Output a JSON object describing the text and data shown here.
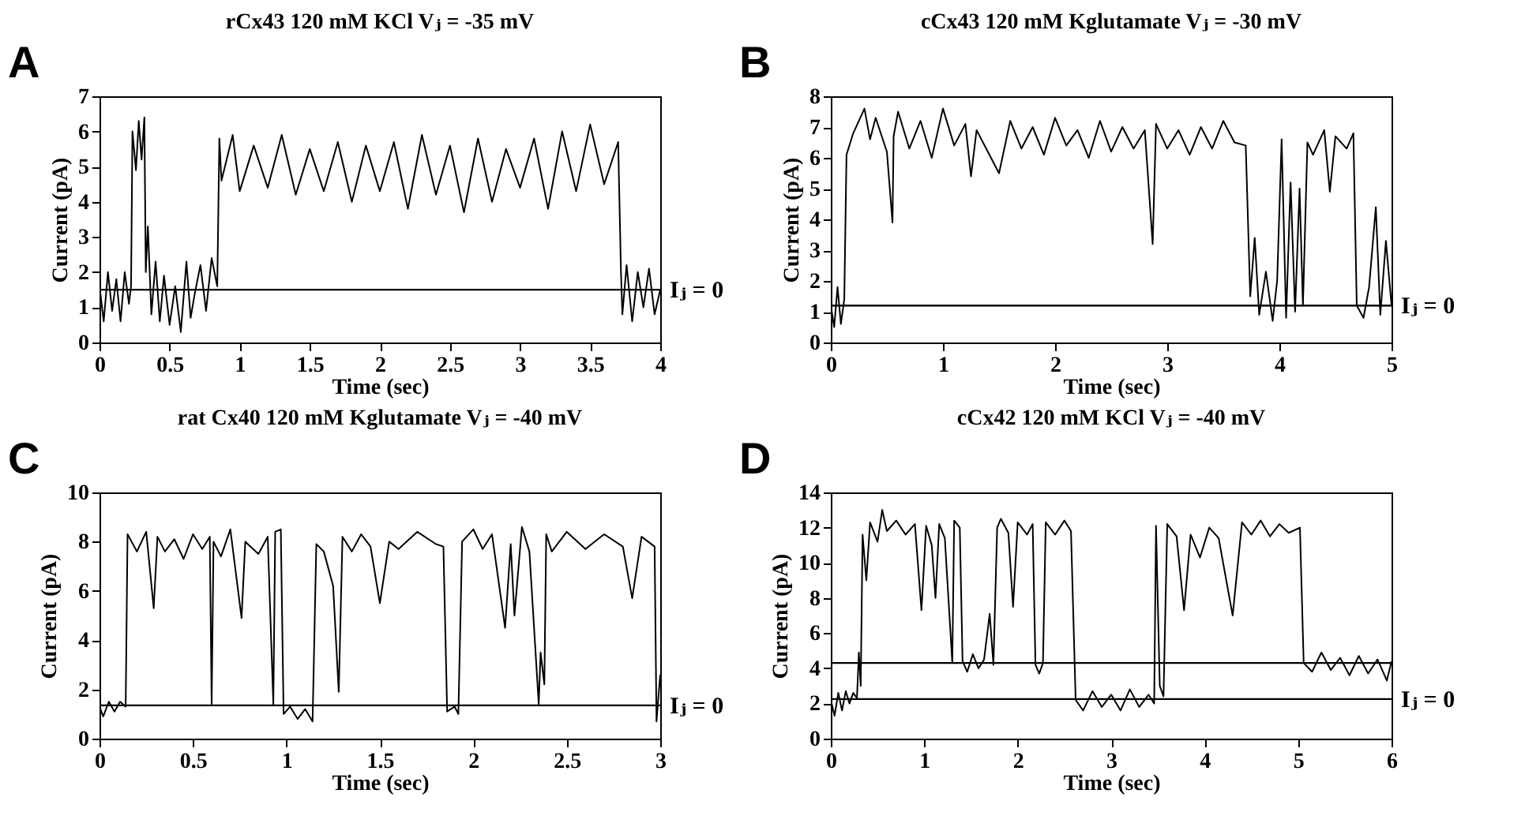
{
  "chart_data": [
    {
      "type": "line",
      "title": "rCx43  120 mM KCl  Vⱼ = -35 mV",
      "xlabel": "Time (sec)",
      "ylabel": "Current (pA)",
      "annotations": [
        "A",
        {
          "text": "Iⱼ = 0",
          "x": 4,
          "y": 1.5
        }
      ],
      "xlim": [
        0,
        4
      ],
      "xticks": [
        0,
        0.5,
        1,
        1.5,
        2,
        2.5,
        3,
        3.5,
        4
      ],
      "ylim": [
        0,
        7
      ],
      "yticks": [
        0,
        1,
        2,
        3,
        4,
        5,
        6,
        7
      ],
      "ref_lines": [
        {
          "axis": "y",
          "value": 1.5,
          "color": "#000000"
        }
      ],
      "series": [
        {
          "color": "#000000",
          "x": [
            0,
            0.03,
            0.06,
            0.09,
            0.12,
            0.15,
            0.18,
            0.21,
            0.225,
            0.235,
            0.26,
            0.28,
            0.3,
            0.32,
            0.33,
            0.345,
            0.37,
            0.4,
            0.43,
            0.46,
            0.5,
            0.54,
            0.58,
            0.62,
            0.65,
            0.68,
            0.72,
            0.76,
            0.8,
            0.84,
            0.855,
            0.87,
            0.95,
            1.0,
            1.1,
            1.2,
            1.3,
            1.4,
            1.5,
            1.6,
            1.7,
            1.8,
            1.9,
            2.0,
            2.1,
            2.2,
            2.3,
            2.4,
            2.5,
            2.6,
            2.7,
            2.8,
            2.9,
            3.0,
            3.1,
            3.2,
            3.3,
            3.4,
            3.5,
            3.6,
            3.7,
            3.72,
            3.73,
            3.76,
            3.8,
            3.84,
            3.88,
            3.92,
            3.96,
            4.0
          ],
          "values": [
            1.6,
            0.6,
            2.0,
            0.9,
            1.8,
            0.6,
            2.0,
            1.1,
            1.6,
            6.0,
            4.9,
            6.3,
            5.2,
            6.4,
            2.0,
            3.3,
            0.8,
            2.3,
            0.6,
            1.9,
            0.5,
            1.6,
            0.3,
            2.3,
            0.7,
            1.4,
            2.2,
            0.9,
            2.4,
            1.6,
            5.8,
            4.6,
            5.9,
            4.3,
            5.6,
            4.4,
            5.9,
            4.2,
            5.5,
            4.3,
            5.7,
            4.0,
            5.6,
            4.3,
            5.7,
            3.8,
            5.9,
            4.2,
            5.6,
            3.7,
            5.8,
            4.0,
            5.5,
            4.4,
            5.8,
            3.8,
            6.0,
            4.3,
            6.2,
            4.5,
            5.7,
            2.0,
            0.8,
            2.2,
            0.6,
            2.0,
            1.0,
            2.1,
            0.8,
            1.5
          ]
        }
      ]
    },
    {
      "type": "line",
      "title": "cCx43  120 mM Kglutamate  Vⱼ = -30 mV",
      "xlabel": "Time (sec)",
      "ylabel": "Current (pA)",
      "annotations": [
        "B",
        {
          "text": "Iⱼ = 0",
          "x": 5,
          "y": 1.2
        }
      ],
      "xlim": [
        0,
        5
      ],
      "xticks": [
        0,
        1,
        2,
        3,
        4,
        5
      ],
      "ylim": [
        0,
        8
      ],
      "yticks": [
        0,
        1,
        2,
        3,
        4,
        5,
        6,
        7,
        8
      ],
      "ref_lines": [
        {
          "axis": "y",
          "value": 1.2,
          "color": "#000000"
        }
      ],
      "series": [
        {
          "color": "#000000",
          "x": [
            0,
            0.03,
            0.06,
            0.09,
            0.12,
            0.14,
            0.2,
            0.3,
            0.35,
            0.4,
            0.5,
            0.55,
            0.56,
            0.6,
            0.7,
            0.8,
            0.9,
            1.0,
            1.1,
            1.2,
            1.25,
            1.3,
            1.4,
            1.5,
            1.6,
            1.7,
            1.8,
            1.9,
            2.0,
            2.1,
            2.2,
            2.3,
            2.4,
            2.5,
            2.6,
            2.7,
            2.8,
            2.87,
            2.9,
            3.0,
            3.1,
            3.2,
            3.3,
            3.4,
            3.5,
            3.6,
            3.7,
            3.74,
            3.78,
            3.82,
            3.88,
            3.94,
            3.98,
            4.02,
            4.06,
            4.1,
            4.14,
            4.18,
            4.21,
            4.25,
            4.3,
            4.4,
            4.45,
            4.5,
            4.6,
            4.66,
            4.69,
            4.75,
            4.8,
            4.86,
            4.9,
            4.95,
            5.0
          ],
          "values": [
            1.2,
            0.5,
            1.8,
            0.6,
            1.4,
            6.1,
            6.8,
            7.6,
            6.6,
            7.3,
            6.2,
            3.9,
            6.7,
            7.5,
            6.3,
            7.2,
            6.0,
            7.6,
            6.4,
            7.1,
            5.4,
            6.9,
            6.2,
            5.5,
            7.2,
            6.3,
            7.0,
            6.1,
            7.3,
            6.4,
            6.9,
            6.0,
            7.2,
            6.2,
            7.0,
            6.3,
            6.9,
            3.2,
            7.1,
            6.3,
            6.9,
            6.1,
            7.0,
            6.3,
            7.2,
            6.5,
            6.4,
            1.5,
            3.4,
            0.9,
            2.3,
            0.7,
            2.0,
            6.6,
            0.8,
            5.2,
            1.0,
            5.0,
            1.2,
            6.5,
            6.1,
            6.9,
            4.9,
            6.7,
            6.3,
            6.8,
            1.2,
            0.8,
            1.8,
            4.4,
            0.9,
            3.3,
            1.2
          ]
        }
      ]
    },
    {
      "type": "line",
      "title": "rat Cx40  120 mM Kglutamate  Vⱼ = -40 mV",
      "xlabel": "Time (sec)",
      "ylabel": "Current (pA)",
      "annotations": [
        "C",
        {
          "text": "Iⱼ = 0",
          "x": 3,
          "y": 1.35
        }
      ],
      "xlim": [
        0,
        3
      ],
      "xticks": [
        0,
        0.5,
        1,
        1.5,
        2,
        2.5,
        3
      ],
      "ylim": [
        0,
        10
      ],
      "yticks": [
        0,
        2,
        4,
        6,
        8,
        10
      ],
      "ref_lines": [
        {
          "axis": "y",
          "value": 1.35,
          "color": "#000000"
        }
      ],
      "series": [
        {
          "color": "#000000",
          "x": [
            0,
            0.02,
            0.05,
            0.08,
            0.11,
            0.14,
            0.15,
            0.2,
            0.25,
            0.29,
            0.31,
            0.35,
            0.4,
            0.45,
            0.5,
            0.55,
            0.59,
            0.6,
            0.61,
            0.65,
            0.7,
            0.76,
            0.78,
            0.85,
            0.9,
            0.93,
            0.94,
            0.97,
            0.985,
            1.02,
            1.06,
            1.1,
            1.14,
            1.16,
            1.2,
            1.25,
            1.28,
            1.3,
            1.35,
            1.4,
            1.45,
            1.5,
            1.55,
            1.6,
            1.7,
            1.8,
            1.84,
            1.86,
            1.9,
            1.92,
            1.94,
            2.0,
            2.05,
            2.1,
            2.17,
            2.2,
            2.22,
            2.26,
            2.3,
            2.35,
            2.36,
            2.38,
            2.39,
            2.42,
            2.5,
            2.6,
            2.7,
            2.8,
            2.85,
            2.9,
            2.97,
            2.98,
            3.0
          ],
          "values": [
            1.3,
            0.9,
            1.5,
            1.1,
            1.5,
            1.3,
            8.3,
            7.6,
            8.4,
            5.3,
            8.2,
            7.6,
            8.1,
            7.3,
            8.3,
            7.7,
            8.2,
            1.4,
            8.0,
            7.4,
            8.5,
            4.9,
            8.0,
            7.5,
            8.2,
            1.4,
            8.4,
            8.5,
            1.0,
            1.3,
            0.8,
            1.2,
            0.7,
            7.9,
            7.6,
            6.2,
            1.9,
            8.2,
            7.6,
            8.3,
            7.8,
            5.5,
            8.0,
            7.7,
            8.4,
            7.9,
            7.8,
            1.1,
            1.3,
            1.0,
            8.0,
            8.5,
            7.7,
            8.3,
            4.5,
            7.9,
            5.0,
            8.6,
            7.6,
            1.4,
            3.5,
            2.2,
            8.3,
            7.6,
            8.4,
            7.7,
            8.3,
            7.8,
            5.7,
            8.2,
            7.8,
            0.7,
            2.6
          ]
        }
      ]
    },
    {
      "type": "line",
      "title": "cCx42  120 mM KCl  Vⱼ = -40 mV",
      "xlabel": "Time (sec)",
      "ylabel": "Current (pA)",
      "annotations": [
        "D",
        {
          "text": "Iⱼ = 0",
          "x": 6,
          "y": 2.25
        }
      ],
      "xlim": [
        0,
        6
      ],
      "xticks": [
        0,
        1,
        2,
        3,
        4,
        5,
        6
      ],
      "ylim": [
        0,
        14
      ],
      "yticks": [
        0,
        2,
        4,
        6,
        8,
        10,
        12,
        14
      ],
      "ref_lines": [
        {
          "axis": "y",
          "value": 4.3,
          "color": "#000000"
        },
        {
          "axis": "y",
          "value": 2.25,
          "color": "#000000"
        }
      ],
      "series": [
        {
          "color": "#000000",
          "x": [
            0,
            0.04,
            0.08,
            0.12,
            0.16,
            0.2,
            0.24,
            0.28,
            0.3,
            0.32,
            0.34,
            0.38,
            0.42,
            0.5,
            0.55,
            0.6,
            0.7,
            0.8,
            0.9,
            0.97,
            1.02,
            1.08,
            1.12,
            1.16,
            1.22,
            1.3,
            1.32,
            1.38,
            1.41,
            1.46,
            1.52,
            1.58,
            1.64,
            1.7,
            1.74,
            1.78,
            1.82,
            1.9,
            1.95,
            2.0,
            2.1,
            2.16,
            2.19,
            2.23,
            2.27,
            2.3,
            2.4,
            2.5,
            2.57,
            2.62,
            2.7,
            2.8,
            2.9,
            3.0,
            3.1,
            3.2,
            3.3,
            3.4,
            3.46,
            3.48,
            3.52,
            3.56,
            3.6,
            3.7,
            3.78,
            3.85,
            3.95,
            4.05,
            4.15,
            4.3,
            4.4,
            4.5,
            4.6,
            4.7,
            4.8,
            4.9,
            5.02,
            5.06,
            5.15,
            5.25,
            5.35,
            5.45,
            5.55,
            5.65,
            5.75,
            5.85,
            5.95,
            6.0
          ],
          "values": [
            2.2,
            1.3,
            2.6,
            1.6,
            2.7,
            2.0,
            2.6,
            2.3,
            4.9,
            3.0,
            11.6,
            9.0,
            12.3,
            11.2,
            13.0,
            11.8,
            12.4,
            11.6,
            12.2,
            7.3,
            12.1,
            11.0,
            8.0,
            12.2,
            11.4,
            4.3,
            12.4,
            12.0,
            4.4,
            3.8,
            4.8,
            4.0,
            4.5,
            7.1,
            4.2,
            12.0,
            12.5,
            11.7,
            7.5,
            12.3,
            11.6,
            12.2,
            4.2,
            3.7,
            4.3,
            12.3,
            11.6,
            12.4,
            11.8,
            2.2,
            1.6,
            2.7,
            1.8,
            2.5,
            1.6,
            2.8,
            1.8,
            2.5,
            2.0,
            12.1,
            3.0,
            2.4,
            12.2,
            11.5,
            7.3,
            11.6,
            10.3,
            12.0,
            11.4,
            7.0,
            12.3,
            11.6,
            12.4,
            11.5,
            12.2,
            11.7,
            12.0,
            4.3,
            3.8,
            4.9,
            3.9,
            4.6,
            3.6,
            4.7,
            3.7,
            4.5,
            3.3,
            4.4
          ]
        }
      ]
    }
  ]
}
